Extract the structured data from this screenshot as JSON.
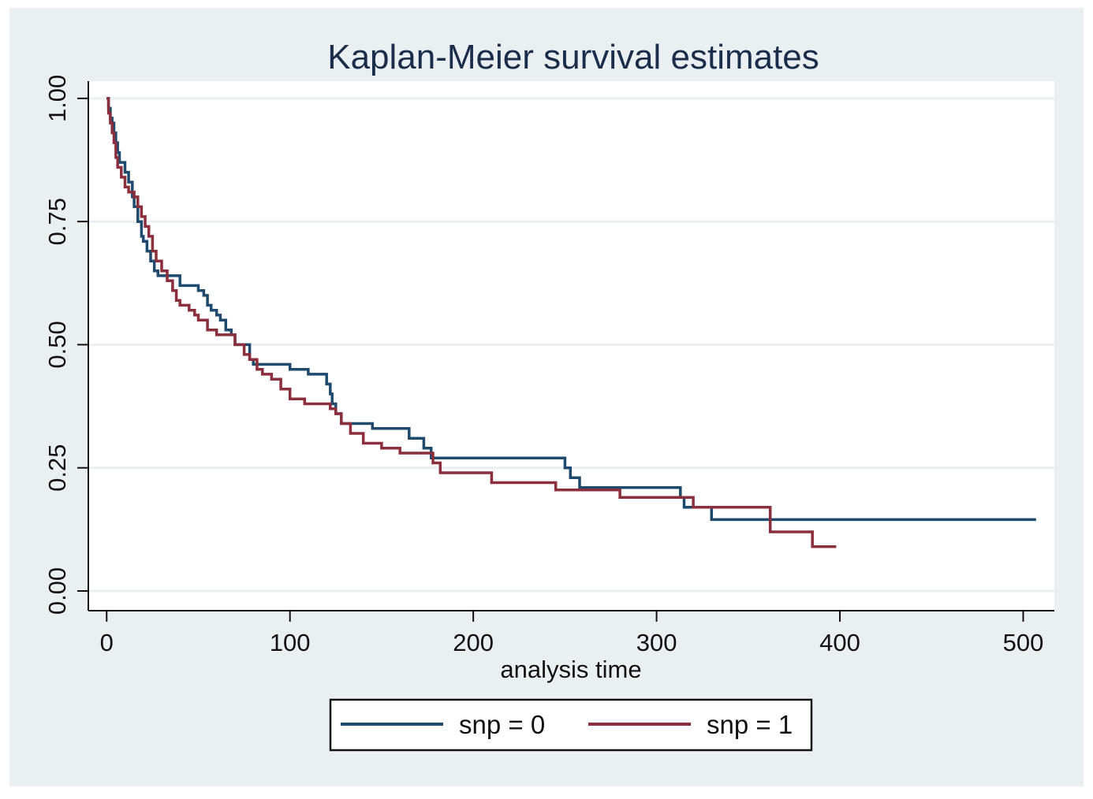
{
  "chart_data": {
    "type": "line",
    "step": true,
    "title": "Kaplan-Meier survival estimates",
    "xlabel": "analysis time",
    "ylabel": "",
    "xlim": [
      -10,
      517
    ],
    "ylim": [
      -0.04,
      1.035
    ],
    "x_ticks": [
      0,
      100,
      200,
      300,
      400,
      500
    ],
    "x_tick_labels": [
      "0",
      "100",
      "200",
      "300",
      "400",
      "500"
    ],
    "y_ticks": [
      0,
      0.25,
      0.5,
      0.75,
      1.0
    ],
    "y_tick_labels": [
      "0.00",
      "0.25",
      "0.50",
      "0.75",
      "1.00"
    ],
    "grid": "horizontal",
    "legend_position": "bottom",
    "series": [
      {
        "name": "snp = 0",
        "color": "#1e4a6e",
        "x": [
          0,
          1,
          2,
          3,
          4,
          5,
          6,
          7,
          8,
          10,
          12,
          14,
          15,
          17,
          19,
          20,
          22,
          24,
          26,
          28,
          30,
          32,
          35,
          40,
          50,
          53,
          55,
          57,
          60,
          62,
          65,
          68,
          70,
          73,
          78,
          80,
          85,
          90,
          100,
          110,
          118,
          120,
          122,
          123,
          125,
          128,
          145,
          165,
          173,
          177,
          180,
          210,
          240,
          250,
          253,
          258,
          300,
          313,
          315,
          330,
          500,
          507
        ],
        "y": [
          1.0,
          0.98,
          0.96,
          0.95,
          0.93,
          0.91,
          0.89,
          0.87,
          0.87,
          0.85,
          0.83,
          0.8,
          0.78,
          0.75,
          0.72,
          0.71,
          0.69,
          0.67,
          0.65,
          0.64,
          0.64,
          0.64,
          0.64,
          0.62,
          0.61,
          0.6,
          0.58,
          0.57,
          0.56,
          0.55,
          0.53,
          0.52,
          0.5,
          0.5,
          0.47,
          0.46,
          0.46,
          0.46,
          0.45,
          0.44,
          0.44,
          0.42,
          0.4,
          0.38,
          0.36,
          0.34,
          0.33,
          0.31,
          0.29,
          0.27,
          0.27,
          0.27,
          0.27,
          0.25,
          0.23,
          0.21,
          0.21,
          0.19,
          0.17,
          0.145,
          0.145,
          0.145
        ]
      },
      {
        "name": "snp = 1",
        "color": "#8c2f3c",
        "x": [
          0,
          1,
          2,
          3,
          4,
          5,
          6,
          8,
          10,
          12,
          15,
          17,
          19,
          21,
          23,
          25,
          27,
          30,
          33,
          36,
          38,
          40,
          45,
          48,
          50,
          55,
          60,
          65,
          70,
          75,
          78,
          82,
          85,
          90,
          95,
          100,
          108,
          115,
          120,
          122,
          125,
          128,
          133,
          140,
          150,
          160,
          175,
          178,
          182,
          200,
          210,
          240,
          245,
          280,
          300,
          313,
          320,
          330,
          340,
          362,
          385,
          398
        ],
        "y": [
          1.0,
          0.97,
          0.95,
          0.93,
          0.91,
          0.88,
          0.86,
          0.84,
          0.82,
          0.81,
          0.8,
          0.78,
          0.76,
          0.74,
          0.72,
          0.69,
          0.67,
          0.65,
          0.63,
          0.61,
          0.59,
          0.58,
          0.57,
          0.56,
          0.55,
          0.53,
          0.52,
          0.52,
          0.5,
          0.48,
          0.47,
          0.45,
          0.44,
          0.43,
          0.41,
          0.39,
          0.38,
          0.38,
          0.38,
          0.37,
          0.36,
          0.34,
          0.32,
          0.3,
          0.29,
          0.28,
          0.28,
          0.26,
          0.24,
          0.24,
          0.22,
          0.22,
          0.205,
          0.19,
          0.19,
          0.19,
          0.17,
          0.17,
          0.17,
          0.12,
          0.09,
          0.09
        ]
      }
    ]
  }
}
